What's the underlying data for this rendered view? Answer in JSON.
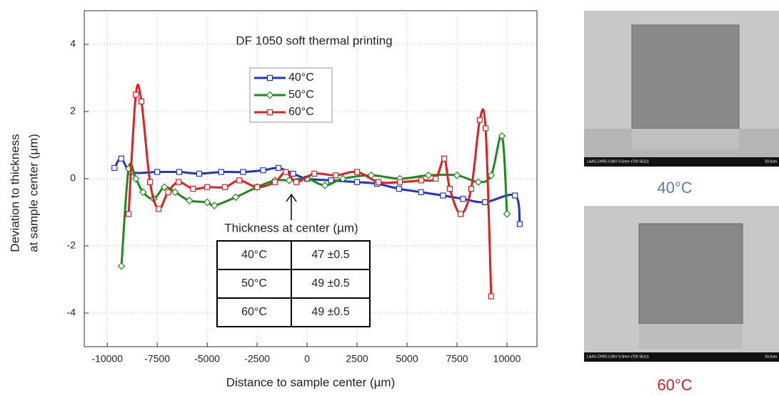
{
  "chart_data": {
    "type": "line",
    "title": "DF 1050  soft thermal printing",
    "x_label": "Distance to sample center (µm)",
    "y_label": [
      "Deviation to thickness",
      "at sample center (µm)"
    ],
    "xlim": [
      -11150,
      11500
    ],
    "ylim": [
      -5,
      5
    ],
    "xticks": [
      -10000,
      -7500,
      -5000,
      -2500,
      0,
      2500,
      5000,
      7500,
      10000
    ],
    "yticks": [
      -4,
      -2,
      0,
      2,
      4
    ],
    "grid": true,
    "legend": "upper center",
    "series": [
      {
        "name": "40°C",
        "color": "#1f35c8",
        "marker": "square",
        "x": [
          -9640,
          -9300,
          -8800,
          -7500,
          -6400,
          -5400,
          -4300,
          -3200,
          -2200,
          -1430,
          -700,
          0,
          1200,
          2500,
          3500,
          4600,
          5700,
          6800,
          7800,
          8900,
          10400,
          10640
        ],
        "values": [
          0.32,
          0.6,
          0.2,
          0.2,
          0.2,
          0.15,
          0.2,
          0.2,
          0.25,
          0.32,
          0.15,
          0,
          -0.05,
          -0.1,
          -0.15,
          -0.3,
          -0.4,
          -0.5,
          -0.6,
          -0.7,
          -0.5,
          -1.35
        ]
      },
      {
        "name": "50°C",
        "color": "#1e8a1e",
        "marker": "diamond",
        "x": [
          -9290,
          -8930,
          -8570,
          -8210,
          -7680,
          -7140,
          -6610,
          -5890,
          -5000,
          -4640,
          -3570,
          -2500,
          -1610,
          -890,
          0,
          890,
          1790,
          3210,
          4640,
          6070,
          7500,
          8570,
          9210,
          9750,
          10000
        ],
        "values": [
          -2.6,
          0.3,
          0,
          -0.4,
          -0.6,
          -0.25,
          -0.4,
          -0.65,
          -0.7,
          -0.8,
          -0.55,
          -0.25,
          -0.05,
          -0.05,
          0,
          -0.2,
          0,
          0.1,
          0,
          0.1,
          0.1,
          -0.1,
          0.1,
          1.27,
          -1.05
        ]
      },
      {
        "name": "60°C",
        "color": "#e02020",
        "marker": "square",
        "x": [
          -8930,
          -8570,
          -8290,
          -7860,
          -7430,
          -6960,
          -6430,
          -5710,
          -5000,
          -4110,
          -3390,
          -2500,
          -1610,
          -1070,
          -540,
          360,
          1430,
          2500,
          3570,
          4640,
          5710,
          6430,
          6860,
          7140,
          7680,
          8210,
          8640,
          8930,
          9210
        ],
        "values": [
          -1.05,
          2.5,
          2.3,
          -0.1,
          -0.9,
          -0.4,
          -0.1,
          -0.3,
          -0.25,
          -0.25,
          -0.05,
          -0.25,
          -0.1,
          0.2,
          -0.1,
          0.15,
          0.1,
          0.2,
          -0.1,
          -0.1,
          -0.05,
          0,
          0.6,
          -0.3,
          -1.05,
          -0.3,
          1.75,
          1.5,
          -3.5
        ]
      }
    ],
    "annotation": "Thickness at center (µm)",
    "table": [
      [
        "40°C",
        "47 ±0.5"
      ],
      [
        "50°C",
        "49 ±0.5"
      ],
      [
        "60°C",
        "49 ±0.5"
      ]
    ]
  },
  "micrographs": [
    {
      "label": "40°C",
      "caption": "LAAS-CNRS 0.8kV 9.5mm x700 SE(U)",
      "scale": "50.0um"
    },
    {
      "label": "60°C",
      "caption": "LAAS-CNRS 0.8kV 9.3mm x700 SE(U)",
      "scale": "50.0um"
    }
  ]
}
